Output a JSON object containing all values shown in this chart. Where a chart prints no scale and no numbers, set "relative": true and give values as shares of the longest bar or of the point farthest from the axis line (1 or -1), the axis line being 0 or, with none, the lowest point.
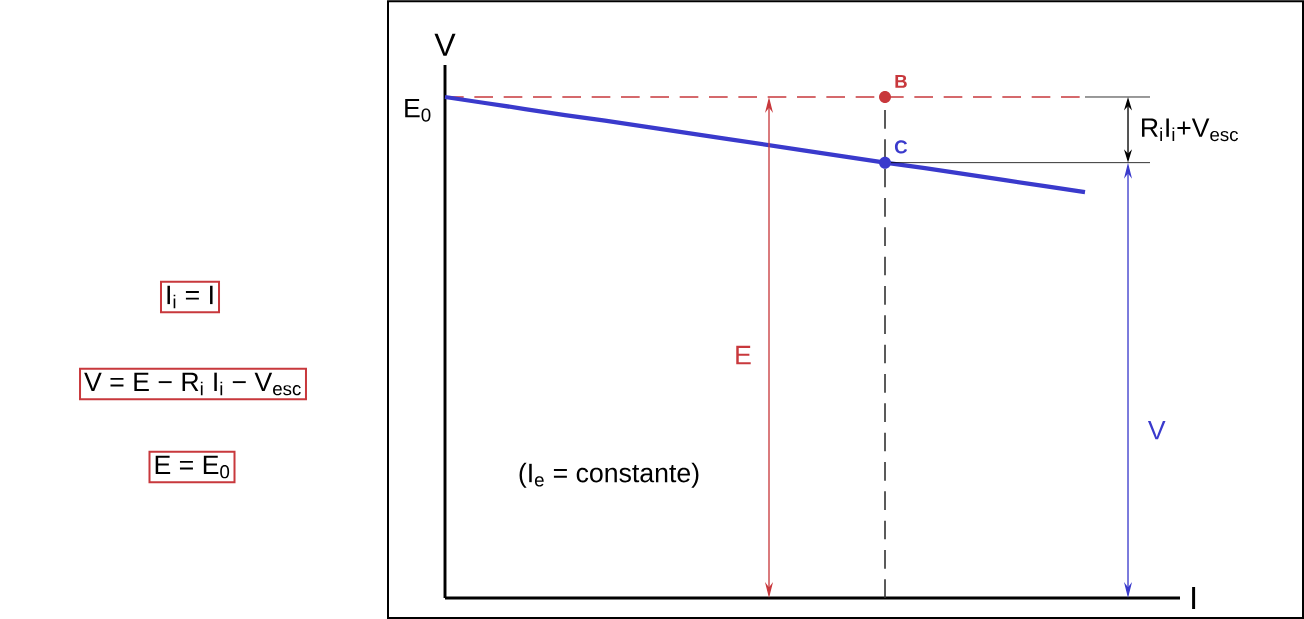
{
  "chart_data": {
    "type": "line",
    "relative": true,
    "xlabel": "I",
    "ylabel": "V",
    "categories": [
      null,
      null,
      null,
      null,
      null,
      null,
      null,
      null,
      null,
      null,
      null,
      null,
      null,
      null,
      null,
      null,
      null
    ],
    "series": [
      {
        "color": "#3a3acc",
        "values": [
          1,
          0.988,
          0.976,
          0.964,
          0.953,
          0.941,
          0.929,
          0.917,
          0.905,
          0.893,
          0.881,
          0.869,
          0.858,
          0.846,
          0.834,
          0.822,
          0.81
        ]
      }
    ],
    "ref_lines": [
      {
        "axis": "y",
        "value": 1,
        "color": "#c8383c",
        "line_style": "dashed"
      }
    ],
    "annotations": [
      "E$_{0}$",
      "I$_{i}$ = I",
      "V = E − R$_{i}$ I$_{i}$ − V$_{esc}$",
      "E = E$_{0}$",
      "(I$_{e}$ = constante)",
      "E",
      "V",
      "R$_{i}$I$_{i}$+V$_{esc}$",
      {
        "text": "B",
        "y": 1
      },
      {
        "text": "C",
        "y": 0.869
      }
    ]
  }
}
